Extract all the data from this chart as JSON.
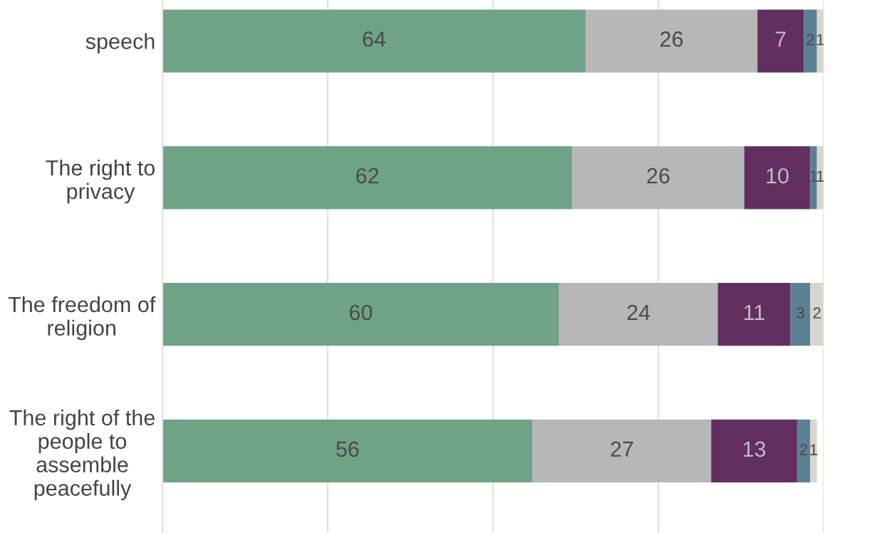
{
  "chart_data": {
    "type": "bar",
    "orientation": "horizontal",
    "stacked": true,
    "data_labels": true,
    "categories": [
      "speech",
      "The right to\nprivacy",
      "The freedom of\nreligion",
      "The right of the\npeople to\nassemble\npeacefully"
    ],
    "series": [
      {
        "color": "#6fa287",
        "values": [
          64,
          62,
          60,
          56
        ]
      },
      {
        "color": "#b7b7b7",
        "values": [
          26,
          26,
          24,
          27
        ]
      },
      {
        "color": "#622f60",
        "values": [
          7,
          10,
          11,
          13
        ]
      },
      {
        "color": "#5b7f95",
        "values": [
          2,
          1,
          3,
          2
        ]
      },
      {
        "color": "#d9d5ce",
        "values": [
          1,
          1,
          2,
          1
        ]
      }
    ],
    "xlim": [
      0,
      100
    ],
    "xticks": [
      {
        "value": 0,
        "label": null
      },
      {
        "value": 25,
        "label": null
      },
      {
        "value": 50,
        "label": null
      },
      {
        "value": 75,
        "label": null
      },
      {
        "value": 100,
        "label": null
      }
    ],
    "grid": "x",
    "tick_labels": "y",
    "legend": false
  }
}
